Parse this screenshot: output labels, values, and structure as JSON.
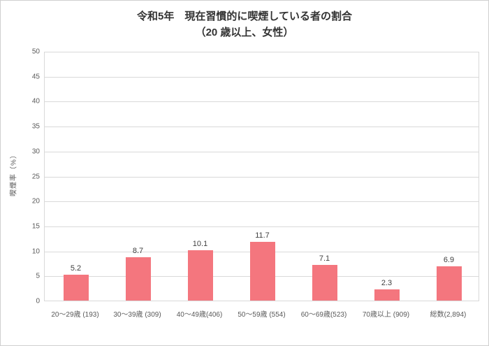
{
  "title": {
    "line1": "令和5年　現在習慣的に喫煙している者の割合",
    "line2": "（20 歳以上、女性）"
  },
  "chart_data": {
    "type": "bar",
    "categories": [
      "20～29歳 (193)",
      "30～39歳 (309)",
      "40～49歳(406)",
      "50～59歳 (554)",
      "60～69歳(523)",
      "70歳以上 (909)",
      "総数(2,894)"
    ],
    "values": [
      5.2,
      8.7,
      10.1,
      11.7,
      7.1,
      2.3,
      6.9
    ],
    "data_labels": [
      "5.2",
      "8.7",
      "10.1",
      "11.7",
      "7.1",
      "2.3",
      "6.9"
    ],
    "title": "令和5年　現在習慣的に喫煙している者の割合（20 歳以上、女性）",
    "xlabel": "",
    "ylabel": "喫煙率（%）",
    "ylim": [
      0,
      50
    ],
    "ytick_step": 5,
    "ytick_labels": [
      "0",
      "5",
      "10",
      "15",
      "20",
      "25",
      "30",
      "35",
      "40",
      "45",
      "50"
    ],
    "bar_color": "#f4767e",
    "grid": true,
    "legend_position": "none"
  }
}
